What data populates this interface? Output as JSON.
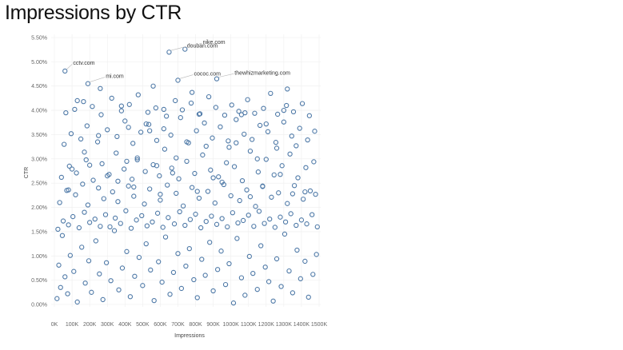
{
  "page": {
    "title": "Impressions by CTR"
  },
  "colors": {
    "point_stroke": "#4e79a7",
    "grid": "#eeeeee",
    "panel": "#ffffff",
    "annotation_line": "#b8b8b8"
  },
  "chart_data": {
    "type": "scatter",
    "title": "",
    "xlabel": "Impressions",
    "ylabel": "CTR",
    "xlim": [
      0,
      1500000
    ],
    "ylim": [
      0,
      0.055
    ],
    "grid": true,
    "x_ticks": [
      {
        "value": 0,
        "label": "0K"
      },
      {
        "value": 100000,
        "label": "100K"
      },
      {
        "value": 200000,
        "label": "200K"
      },
      {
        "value": 300000,
        "label": "300K"
      },
      {
        "value": 400000,
        "label": "400K"
      },
      {
        "value": 500000,
        "label": "500K"
      },
      {
        "value": 600000,
        "label": "600K"
      },
      {
        "value": 700000,
        "label": "700K"
      },
      {
        "value": 800000,
        "label": "800K"
      },
      {
        "value": 900000,
        "label": "900K"
      },
      {
        "value": 1000000,
        "label": "1000K"
      },
      {
        "value": 1100000,
        "label": "1100K"
      },
      {
        "value": 1200000,
        "label": "1200K"
      },
      {
        "value": 1300000,
        "label": "1300K"
      },
      {
        "value": 1400000,
        "label": "1400K"
      },
      {
        "value": 1500000,
        "label": "1500K"
      }
    ],
    "y_ticks": [
      {
        "value": 0.0,
        "label": "0.00%"
      },
      {
        "value": 0.005,
        "label": "0.50%"
      },
      {
        "value": 0.01,
        "label": "1.00%"
      },
      {
        "value": 0.015,
        "label": "1.50%"
      },
      {
        "value": 0.02,
        "label": "2.00%"
      },
      {
        "value": 0.025,
        "label": "2.50%"
      },
      {
        "value": 0.03,
        "label": "3.00%"
      },
      {
        "value": 0.035,
        "label": "3.50%"
      },
      {
        "value": 0.04,
        "label": "4.00%"
      },
      {
        "value": 0.045,
        "label": "4.50%"
      },
      {
        "value": 0.05,
        "label": "5.00%"
      },
      {
        "value": 0.055,
        "label": "5.50%"
      }
    ],
    "annotations": [
      {
        "label": "cctv.com",
        "x": 60000,
        "y": 0.0481,
        "label_x": 115000,
        "label_y": 0.0497
      },
      {
        "label": "mi.com",
        "x": 190000,
        "y": 0.0455,
        "label_x": 300000,
        "label_y": 0.047
      },
      {
        "label": "douban.com",
        "x": 650000,
        "y": 0.052,
        "label_x": 760000,
        "label_y": 0.0533
      },
      {
        "label": "nike.com",
        "x": 740000,
        "y": 0.0526,
        "label_x": 850000,
        "label_y": 0.054
      },
      {
        "label": "cococ.com",
        "x": 700000,
        "y": 0.0462,
        "label_x": 800000,
        "label_y": 0.0475
      },
      {
        "label": "thewhizmarketing.com",
        "x": 920000,
        "y": 0.0465,
        "label_x": 1030000,
        "label_y": 0.0477
      }
    ],
    "points_x": [
      15000,
      25000,
      35000,
      45000,
      60000,
      75000,
      90000,
      110000,
      130000,
      155000,
      175000,
      195000,
      210000,
      235000,
      255000,
      275000,
      295000,
      320000,
      340000,
      365000,
      385000,
      410000,
      430000,
      455000,
      480000,
      500000,
      520000,
      545000,
      565000,
      590000,
      610000,
      630000,
      655000,
      675000,
      700000,
      720000,
      745000,
      765000,
      790000,
      810000,
      835000,
      855000,
      880000,
      900000,
      925000,
      945000,
      970000,
      990000,
      1015000,
      1035000,
      1060000,
      1080000,
      1105000,
      1125000,
      1150000,
      1170000,
      1195000,
      1215000,
      1240000,
      1260000,
      1285000,
      1305000,
      1330000,
      1350000,
      1375000,
      1395000,
      1420000,
      1440000,
      1465000,
      1485000,
      20000,
      50000,
      80000,
      105000,
      140000,
      170000,
      200000,
      230000,
      260000,
      290000,
      315000,
      345000,
      375000,
      405000,
      435000,
      465000,
      495000,
      525000,
      555000,
      585000,
      615000,
      645000,
      680000,
      710000,
      740000,
      770000,
      800000,
      830000,
      860000,
      890000,
      920000,
      950000,
      980000,
      1010000,
      1040000,
      1070000,
      1100000,
      1130000,
      1160000,
      1190000,
      1220000,
      1250000,
      1280000,
      1310000,
      1340000,
      1370000,
      1400000,
      1430000,
      1460000,
      1490000,
      30000,
      70000,
      120000,
      160000,
      190000,
      250000,
      280000,
      330000,
      360000,
      420000,
      450000,
      510000,
      540000,
      600000,
      640000,
      690000,
      730000,
      780000,
      820000,
      870000,
      910000,
      960000,
      1000000,
      1050000,
      1090000,
      1140000,
      1180000,
      1230000,
      1270000,
      1320000,
      1360000,
      1410000,
      1450000,
      1480000,
      40000,
      85000,
      125000,
      180000,
      220000,
      270000,
      310000,
      350000,
      395000,
      440000,
      470000,
      515000,
      560000,
      595000,
      625000,
      665000,
      705000,
      750000,
      795000,
      840000,
      885000,
      930000,
      975000,
      1020000,
      1065000,
      1110000,
      1155000,
      1200000,
      1245000,
      1290000,
      1335000,
      1380000,
      1425000,
      1470000,
      55000,
      95000,
      150000,
      185000,
      245000,
      300000,
      355000,
      400000,
      445000,
      490000,
      535000,
      580000,
      620000,
      660000,
      715000,
      760000,
      805000,
      850000,
      895000,
      940000,
      985000,
      1030000,
      1075000,
      1120000,
      1165000,
      1210000,
      1255000,
      1300000,
      1345000,
      1390000,
      1435000,
      1475000,
      65000,
      115000,
      165000,
      215000,
      265000,
      325000,
      380000,
      425000,
      475000,
      530000,
      575000,
      635000,
      685000,
      725000,
      775000,
      825000,
      875000,
      915000,
      965000,
      1005000,
      1045000,
      1095000,
      1135000,
      1185000,
      1225000,
      1265000,
      1315000,
      1355000,
      1405000,
      1445000,
      60000,
      190000,
      650000,
      740000,
      700000,
      920000,
      130000,
      260000,
      380000,
      420000,
      520000,
      560000,
      620000,
      780000,
      820000,
      1060000,
      1080000,
      1200000,
      1300000,
      1320000,
      100000,
      170000,
      250000,
      410000,
      470000,
      540000,
      580000,
      690000,
      750000,
      860000,
      990000,
      1030000,
      1150000,
      1260000,
      1370000,
      80000,
      200000,
      300000,
      360000,
      450000,
      600000,
      670000,
      810000,
      900000,
      950000,
      1110000,
      1180000,
      1280000,
      1350000,
      1420000
    ],
    "points_y": [
      0.0012,
      0.0081,
      0.0035,
      0.0142,
      0.0057,
      0.0022,
      0.0101,
      0.0068,
      0.0005,
      0.0118,
      0.0044,
      0.009,
      0.0025,
      0.0131,
      0.0063,
      0.001,
      0.0086,
      0.0049,
      0.0152,
      0.003,
      0.0075,
      0.0109,
      0.0016,
      0.0058,
      0.0097,
      0.0039,
      0.0125,
      0.0071,
      0.0008,
      0.0088,
      0.0046,
      0.0139,
      0.0021,
      0.0066,
      0.0105,
      0.0033,
      0.0079,
      0.0115,
      0.0051,
      0.0014,
      0.0093,
      0.006,
      0.0128,
      0.0028,
      0.0072,
      0.011,
      0.0041,
      0.0084,
      0.0003,
      0.0136,
      0.0055,
      0.0019,
      0.0099,
      0.0064,
      0.0031,
      0.0121,
      0.0077,
      0.0047,
      0.0007,
      0.0094,
      0.0037,
      0.0145,
      0.0069,
      0.0024,
      0.0112,
      0.0053,
      0.0089,
      0.0015,
      0.0062,
      0.0103,
      0.0155,
      0.0172,
      0.0164,
      0.0181,
      0.0158,
      0.019,
      0.0169,
      0.0176,
      0.0161,
      0.0185,
      0.016,
      0.0178,
      0.0167,
      0.0193,
      0.0157,
      0.0174,
      0.0183,
      0.0162,
      0.017,
      0.0188,
      0.0159,
      0.0179,
      0.0166,
      0.0191,
      0.0163,
      0.0175,
      0.0186,
      0.0158,
      0.0171,
      0.0182,
      0.0165,
      0.0177,
      0.016,
      0.0189,
      0.0168,
      0.0173,
      0.0184,
      0.0161,
      0.0192,
      0.0167,
      0.0176,
      0.0159,
      0.018,
      0.017,
      0.0187,
      0.0163,
      0.0174,
      0.0166,
      0.0185,
      0.016,
      0.021,
      0.0235,
      0.0226,
      0.0248,
      0.0205,
      0.024,
      0.0218,
      0.0232,
      0.0212,
      0.0244,
      0.0223,
      0.0207,
      0.0238,
      0.0215,
      0.0246,
      0.0229,
      0.0203,
      0.0241,
      0.0219,
      0.0233,
      0.0209,
      0.0247,
      0.0224,
      0.0214,
      0.0236,
      0.0202,
      0.0243,
      0.0221,
      0.023,
      0.0208,
      0.0245,
      0.0217,
      0.0234,
      0.0227,
      0.0262,
      0.0285,
      0.0271,
      0.0298,
      0.0256,
      0.029,
      0.0268,
      0.0312,
      0.0279,
      0.0258,
      0.0302,
      0.0274,
      0.0288,
      0.0265,
      0.032,
      0.0281,
      0.0259,
      0.0295,
      0.027,
      0.0308,
      0.0277,
      0.0263,
      0.0292,
      0.0284,
      0.0255,
      0.0316,
      0.0273,
      0.0299,
      0.0267,
      0.0286,
      0.031,
      0.0261,
      0.0282,
      0.0294,
      0.033,
      0.0352,
      0.0341,
      0.0368,
      0.0335,
      0.036,
      0.0346,
      0.0378,
      0.0332,
      0.0355,
      0.0371,
      0.0338,
      0.0362,
      0.0349,
      0.0385,
      0.0333,
      0.0358,
      0.0374,
      0.0343,
      0.0366,
      0.0337,
      0.0381,
      0.0351,
      0.034,
      0.0369,
      0.0356,
      0.0334,
      0.0376,
      0.0347,
      0.0363,
      0.0339,
      0.0357,
      0.0395,
      0.0402,
      0.0418,
      0.0408,
      0.0391,
      0.0425,
      0.0399,
      0.0412,
      0.0432,
      0.0396,
      0.0405,
      0.0388,
      0.042,
      0.0401,
      0.0415,
      0.0393,
      0.0428,
      0.0406,
      0.039,
      0.0411,
      0.0398,
      0.0422,
      0.0394,
      0.0404,
      0.0435,
      0.0392,
      0.041,
      0.0397,
      0.0414,
      0.0389,
      0.0481,
      0.0455,
      0.052,
      0.0526,
      0.0462,
      0.0465,
      0.042,
      0.0445,
      0.0409,
      0.0365,
      0.0372,
      0.045,
      0.0402,
      0.0437,
      0.0392,
      0.0391,
      0.0395,
      0.0372,
      0.04,
      0.0444,
      0.0279,
      0.0314,
      0.0348,
      0.0295,
      0.0298,
      0.0358,
      0.0286,
      0.0302,
      0.0335,
      0.0326,
      0.0324,
      0.0333,
      0.03,
      0.0322,
      0.0327,
      0.0236,
      0.0287,
      0.0265,
      0.0254,
      0.0242,
      0.0227,
      0.0271,
      0.0233,
      0.0261,
      0.0252,
      0.0222,
      0.0244,
      0.0268,
      0.0228,
      0.0232
    ]
  }
}
